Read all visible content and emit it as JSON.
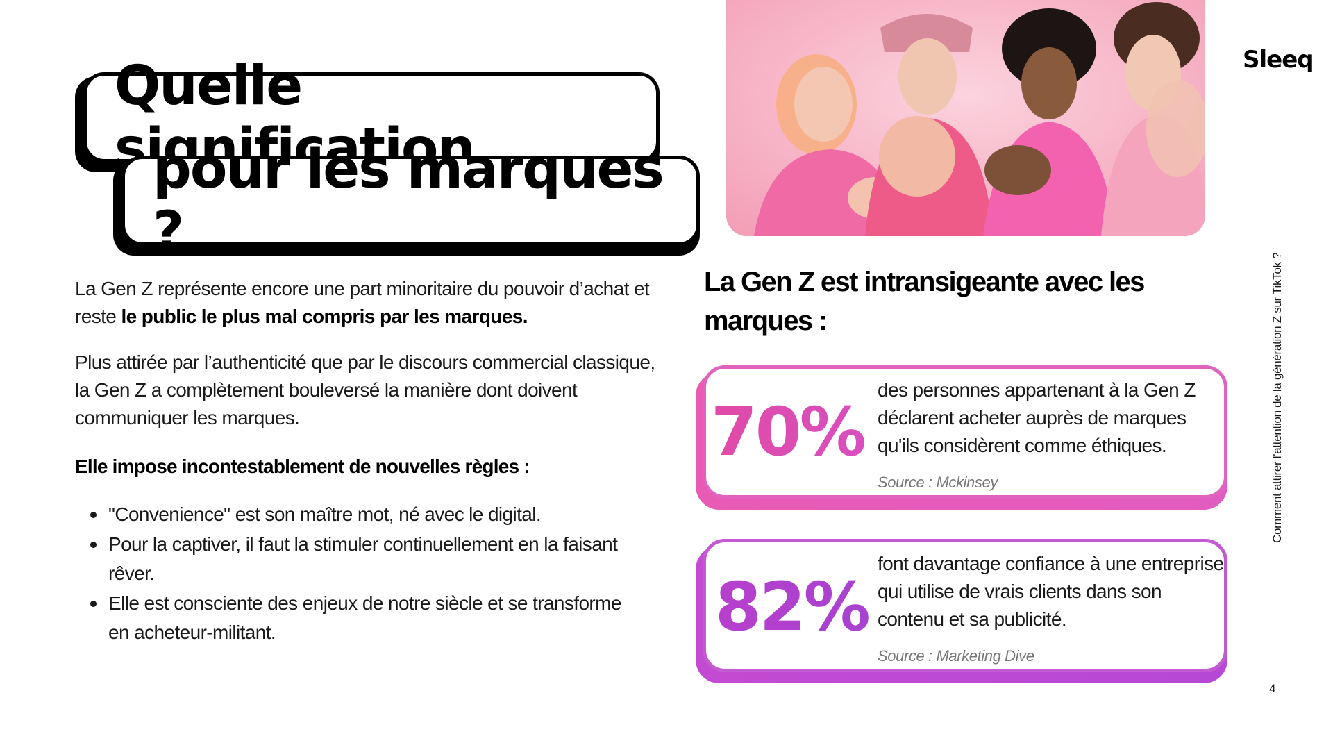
{
  "title": {
    "line1": "Quelle signification",
    "line2": "pour les marques ?"
  },
  "intro": {
    "part1": "La Gen Z représente encore une part minoritaire du pouvoir d’achat et reste ",
    "bold": "le public le plus mal compris par les marques.",
    "paragraph2": "Plus attirée par l’authenticité que par le discours commercial classique, la Gen Z a complètement bouleversé la manière dont doivent communiquer les marques."
  },
  "rules": {
    "heading": "Elle impose incontestablement de nouvelles règles :",
    "items": [
      "\"Convenience\" est son maître mot, né avec le digital.",
      "Pour la captiver, il faut la stimuler continuellement en la faisant rêver.",
      "Elle est consciente des enjeux de notre siècle et se transforme en acheteur-militant."
    ]
  },
  "brand": {
    "logo": "Sleeq"
  },
  "side": {
    "vertical_text": "Comment attirer l'attention de la génération Z sur TikTok ?",
    "page_number": "4"
  },
  "right": {
    "heading": "La Gen Z est intransigeante avec les marques :"
  },
  "stats": [
    {
      "value": "70%",
      "text": "des personnes appartenant à la Gen Z déclarent acheter auprès de marques qu'ils considèrent comme éthiques.",
      "source": "Source : Mckinsey",
      "color": "#e14aa6"
    },
    {
      "value": "82%",
      "text": "font davantage confiance à une entreprise qui utilise de vrais clients dans son contenu et sa publicité.",
      "source": "Source : Marketing Dive",
      "color": "#b83fcd"
    }
  ],
  "colors": {
    "pink_accent": "#e063bd",
    "purple_accent": "#c45ad2",
    "photo_background": "#f7a8bf"
  }
}
